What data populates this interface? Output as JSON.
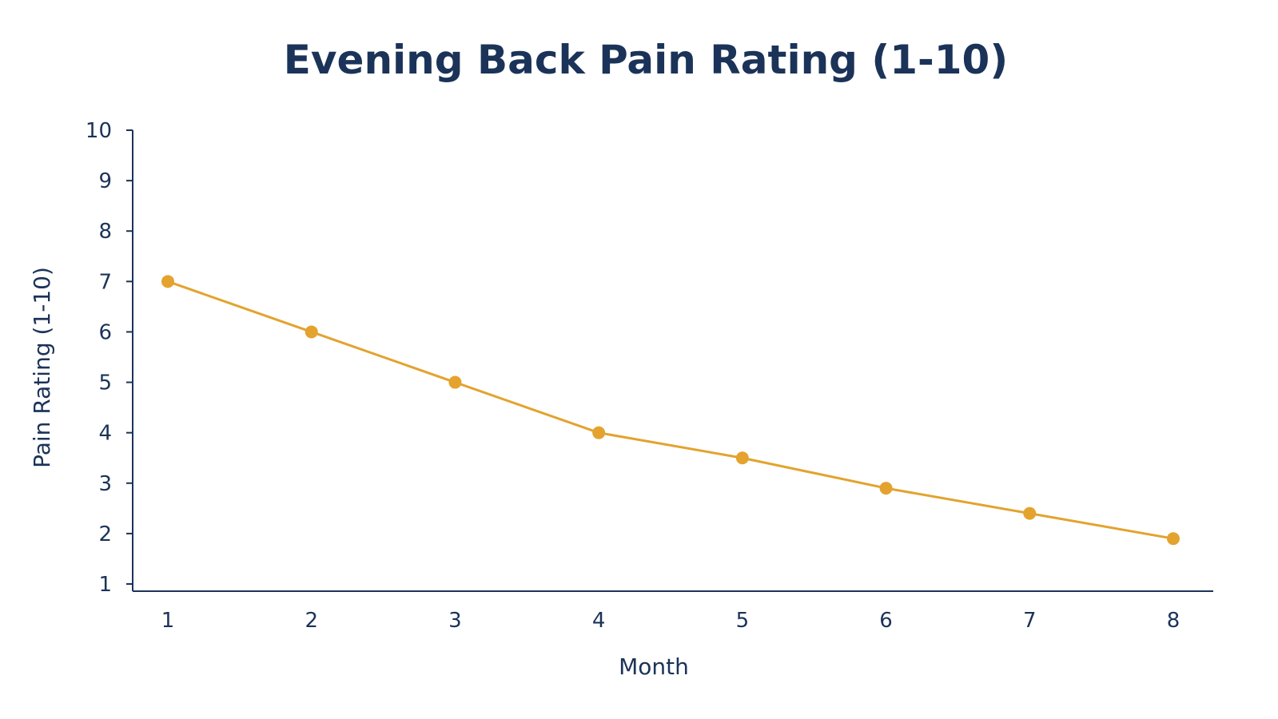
{
  "chart_data": {
    "type": "line",
    "title": "Evening Back Pain Rating (1-10)",
    "xlabel": "Month",
    "ylabel": "Pain Rating (1-10)",
    "x": [
      1,
      2,
      3,
      4,
      5,
      6,
      7,
      8
    ],
    "x_tick_labels": [
      "1",
      "2",
      "3",
      "4",
      "5",
      "6",
      "7",
      "8"
    ],
    "y_tick_labels": [
      "1",
      "2",
      "3",
      "4",
      "5",
      "6",
      "7",
      "8",
      "9",
      "10"
    ],
    "ylim": [
      1,
      10
    ],
    "grid": false,
    "legend": "none",
    "series": [
      {
        "values": [
          7,
          6,
          5,
          4,
          3.5,
          2.9,
          2.4,
          1.9
        ]
      }
    ],
    "colors": {
      "line": "#e3a32e",
      "axis": "#1b3358",
      "text": "#1b3358"
    }
  }
}
